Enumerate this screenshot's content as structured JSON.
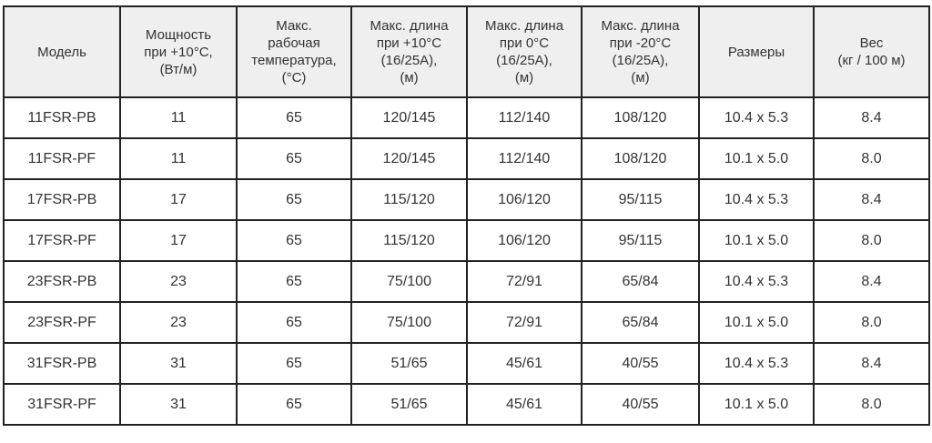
{
  "headers": [
    "Модель",
    "Мощность\nпри +10°C,\n(Вт/м)",
    "Макс.\nрабочая\nтемпература,\n(°C)",
    "Макс. длина\nпри +10°C\n(16/25A),\n(м)",
    "Макс. длина\nпри 0°C\n(16/25A),\n(м)",
    "Макс. длина\nпри -20°C\n(16/25A),\n(м)",
    "Размеры",
    "Вес\n(кг / 100 м)"
  ],
  "rows": [
    [
      "11FSR-PB",
      "11",
      "65",
      "120/145",
      "112/140",
      "108/120",
      "10.4 x 5.3",
      "8.4"
    ],
    [
      "11FSR-PF",
      "11",
      "65",
      "120/145",
      "112/140",
      "108/120",
      "10.1 x 5.0",
      "8.0"
    ],
    [
      "17FSR-PB",
      "17",
      "65",
      "115/120",
      "106/120",
      "95/115",
      "10.4 x 5.3",
      "8.4"
    ],
    [
      "17FSR-PF",
      "17",
      "65",
      "115/120",
      "106/120",
      "95/115",
      "10.1 x 5.0",
      "8.0"
    ],
    [
      "23FSR-PB",
      "23",
      "65",
      "75/100",
      "72/91",
      "65/84",
      "10.4 x 5.3",
      "8.4"
    ],
    [
      "23FSR-PF",
      "23",
      "65",
      "75/100",
      "72/91",
      "65/84",
      "10.1 x 5.0",
      "8.0"
    ],
    [
      "31FSR-PB",
      "31",
      "65",
      "51/65",
      "45/61",
      "40/55",
      "10.4 x 5.3",
      "8.4"
    ],
    [
      "31FSR-PF",
      "31",
      "65",
      "51/65",
      "45/61",
      "40/55",
      "10.1 x 5.0",
      "8.0"
    ]
  ]
}
